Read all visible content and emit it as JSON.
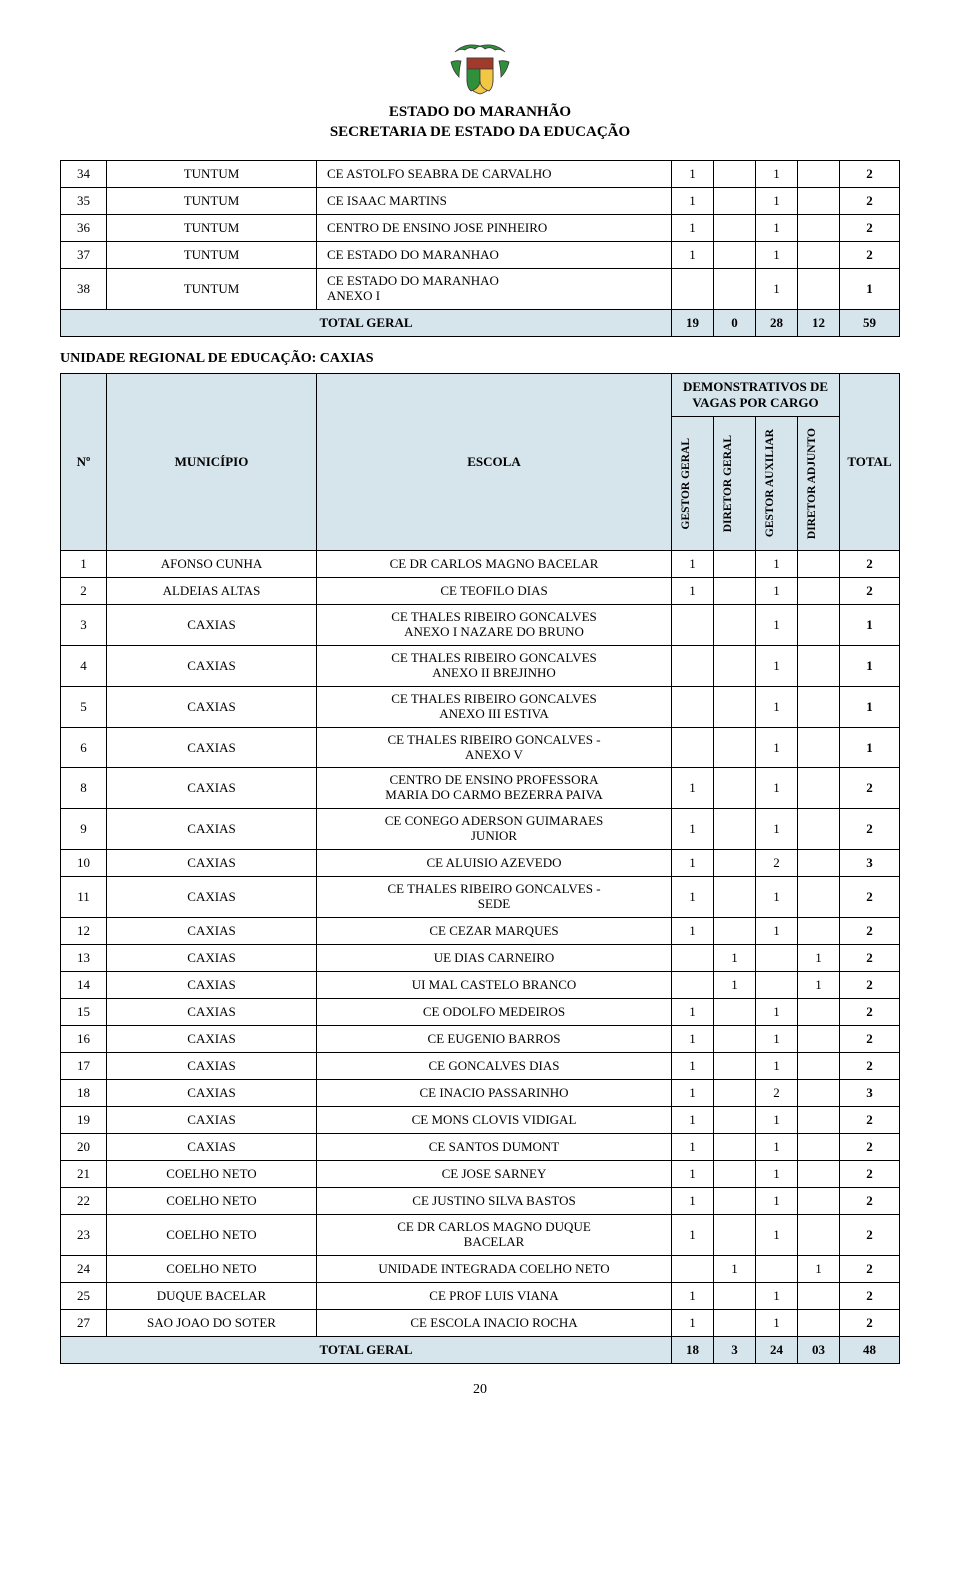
{
  "header": {
    "line1": "ESTADO DO MARANHÃO",
    "line2": "SECRETARIA DE ESTADO DA EDUCAÇÃO"
  },
  "crest": {
    "green": "#2f8f3a",
    "yellow": "#f2c744",
    "red": "#a03a2a",
    "outline": "#3a3a3a"
  },
  "table1": {
    "rows": [
      {
        "n": "34",
        "mun": "TUNTUM",
        "esc": "CE ASTOLFO SEABRA DE CARVALHO",
        "c1": "1",
        "c2": "",
        "c3": "1",
        "c4": "",
        "tot": "2"
      },
      {
        "n": "35",
        "mun": "TUNTUM",
        "esc": "CE ISAAC MARTINS",
        "c1": "1",
        "c2": "",
        "c3": "1",
        "c4": "",
        "tot": "2"
      },
      {
        "n": "36",
        "mun": "TUNTUM",
        "esc": "CENTRO DE ENSINO JOSE PINHEIRO",
        "c1": "1",
        "c2": "",
        "c3": "1",
        "c4": "",
        "tot": "2"
      },
      {
        "n": "37",
        "mun": "TUNTUM",
        "esc": "CE ESTADO DO MARANHAO",
        "c1": "1",
        "c2": "",
        "c3": "1",
        "c4": "",
        "tot": "2"
      },
      {
        "n": "38",
        "mun": "TUNTUM",
        "esc": "CE ESTADO DO MARANHAO\nANEXO I",
        "c1": "",
        "c2": "",
        "c3": "1",
        "c4": "",
        "tot": "1"
      }
    ],
    "total": {
      "label": "TOTAL GERAL",
      "c1": "19",
      "c2": "0",
      "c3": "28",
      "c4": "12",
      "tot": "59"
    }
  },
  "section2": {
    "title": "UNIDADE REGIONAL DE EDUCAÇÃO: CAXIAS",
    "head": {
      "n": "Nº",
      "mun": "MUNICÍPIO",
      "esc": "ESCOLA",
      "group": "DEMONSTRATIVOS DE VAGAS POR CARGO",
      "c1": "GESTOR GERAL",
      "c2": "DIRETOR GERAL",
      "c3": "GESTOR AUXILIAR",
      "c4": "DIRETOR ADJUNTO",
      "tot": "TOTAL"
    },
    "rows": [
      {
        "n": "1",
        "mun": "AFONSO CUNHA",
        "esc": "CE DR CARLOS MAGNO BACELAR",
        "c1": "1",
        "c2": "",
        "c3": "1",
        "c4": "",
        "tot": "2"
      },
      {
        "n": "2",
        "mun": "ALDEIAS ALTAS",
        "esc": "CE TEOFILO DIAS",
        "c1": "1",
        "c2": "",
        "c3": "1",
        "c4": "",
        "tot": "2"
      },
      {
        "n": "3",
        "mun": "CAXIAS",
        "esc": "CE THALES RIBEIRO GONCALVES\nANEXO I NAZARE DO BRUNO",
        "c1": "",
        "c2": "",
        "c3": "1",
        "c4": "",
        "tot": "1"
      },
      {
        "n": "4",
        "mun": "CAXIAS",
        "esc": "CE THALES RIBEIRO GONCALVES\nANEXO II BREJINHO",
        "c1": "",
        "c2": "",
        "c3": "1",
        "c4": "",
        "tot": "1"
      },
      {
        "n": "5",
        "mun": "CAXIAS",
        "esc": "CE THALES RIBEIRO GONCALVES\nANEXO III ESTIVA",
        "c1": "",
        "c2": "",
        "c3": "1",
        "c4": "",
        "tot": "1"
      },
      {
        "n": "6",
        "mun": "CAXIAS",
        "esc": "CE THALES RIBEIRO GONCALVES -\nANEXO V",
        "c1": "",
        "c2": "",
        "c3": "1",
        "c4": "",
        "tot": "1"
      },
      {
        "n": "8",
        "mun": "CAXIAS",
        "esc": "CENTRO DE ENSINO PROFESSORA\nMARIA DO CARMO BEZERRA PAIVA",
        "c1": "1",
        "c2": "",
        "c3": "1",
        "c4": "",
        "tot": "2"
      },
      {
        "n": "9",
        "mun": "CAXIAS",
        "esc": "CE CONEGO ADERSON GUIMARAES\nJUNIOR",
        "c1": "1",
        "c2": "",
        "c3": "1",
        "c4": "",
        "tot": "2"
      },
      {
        "n": "10",
        "mun": "CAXIAS",
        "esc": "CE ALUISIO AZEVEDO",
        "c1": "1",
        "c2": "",
        "c3": "2",
        "c4": "",
        "tot": "3"
      },
      {
        "n": "11",
        "mun": "CAXIAS",
        "esc": "CE THALES RIBEIRO GONCALVES -\nSEDE",
        "c1": "1",
        "c2": "",
        "c3": "1",
        "c4": "",
        "tot": "2"
      },
      {
        "n": "12",
        "mun": "CAXIAS",
        "esc": "CE CEZAR MARQUES",
        "c1": "1",
        "c2": "",
        "c3": "1",
        "c4": "",
        "tot": "2"
      },
      {
        "n": "13",
        "mun": "CAXIAS",
        "esc": "UE DIAS CARNEIRO",
        "c1": "",
        "c2": "1",
        "c3": "",
        "c4": "1",
        "tot": "2"
      },
      {
        "n": "14",
        "mun": "CAXIAS",
        "esc": "UI MAL CASTELO BRANCO",
        "c1": "",
        "c2": "1",
        "c3": "",
        "c4": "1",
        "tot": "2"
      },
      {
        "n": "15",
        "mun": "CAXIAS",
        "esc": "CE ODOLFO MEDEIROS",
        "c1": "1",
        "c2": "",
        "c3": "1",
        "c4": "",
        "tot": "2"
      },
      {
        "n": "16",
        "mun": "CAXIAS",
        "esc": "CE EUGENIO BARROS",
        "c1": "1",
        "c2": "",
        "c3": "1",
        "c4": "",
        "tot": "2"
      },
      {
        "n": "17",
        "mun": "CAXIAS",
        "esc": "CE GONCALVES DIAS",
        "c1": "1",
        "c2": "",
        "c3": "1",
        "c4": "",
        "tot": "2"
      },
      {
        "n": "18",
        "mun": "CAXIAS",
        "esc": "CE INACIO PASSARINHO",
        "c1": "1",
        "c2": "",
        "c3": "2",
        "c4": "",
        "tot": "3"
      },
      {
        "n": "19",
        "mun": "CAXIAS",
        "esc": "CE MONS CLOVIS VIDIGAL",
        "c1": "1",
        "c2": "",
        "c3": "1",
        "c4": "",
        "tot": "2"
      },
      {
        "n": "20",
        "mun": "CAXIAS",
        "esc": "CE SANTOS DUMONT",
        "c1": "1",
        "c2": "",
        "c3": "1",
        "c4": "",
        "tot": "2"
      },
      {
        "n": "21",
        "mun": "COELHO NETO",
        "esc": "CE JOSE SARNEY",
        "c1": "1",
        "c2": "",
        "c3": "1",
        "c4": "",
        "tot": "2"
      },
      {
        "n": "22",
        "mun": "COELHO NETO",
        "esc": "CE JUSTINO SILVA BASTOS",
        "c1": "1",
        "c2": "",
        "c3": "1",
        "c4": "",
        "tot": "2"
      },
      {
        "n": "23",
        "mun": "COELHO NETO",
        "esc": "CE DR CARLOS MAGNO DUQUE\nBACELAR",
        "c1": "1",
        "c2": "",
        "c3": "1",
        "c4": "",
        "tot": "2"
      },
      {
        "n": "24",
        "mun": "COELHO NETO",
        "esc": "UNIDADE INTEGRADA COELHO NETO",
        "c1": "",
        "c2": "1",
        "c3": "",
        "c4": "1",
        "tot": "2"
      },
      {
        "n": "25",
        "mun": "DUQUE BACELAR",
        "esc": "CE PROF LUIS VIANA",
        "c1": "1",
        "c2": "",
        "c3": "1",
        "c4": "",
        "tot": "2"
      },
      {
        "n": "27",
        "mun": "SAO JOAO DO SOTER",
        "esc": "CE ESCOLA INACIO ROCHA",
        "c1": "1",
        "c2": "",
        "c3": "1",
        "c4": "",
        "tot": "2"
      }
    ],
    "total": {
      "label": "TOTAL GERAL",
      "c1": "18",
      "c2": "3",
      "c3": "24",
      "c4": "03",
      "tot": "48"
    }
  },
  "page_number": "20",
  "colors": {
    "band_bg": "#d6e5ec",
    "border": "#000000"
  }
}
